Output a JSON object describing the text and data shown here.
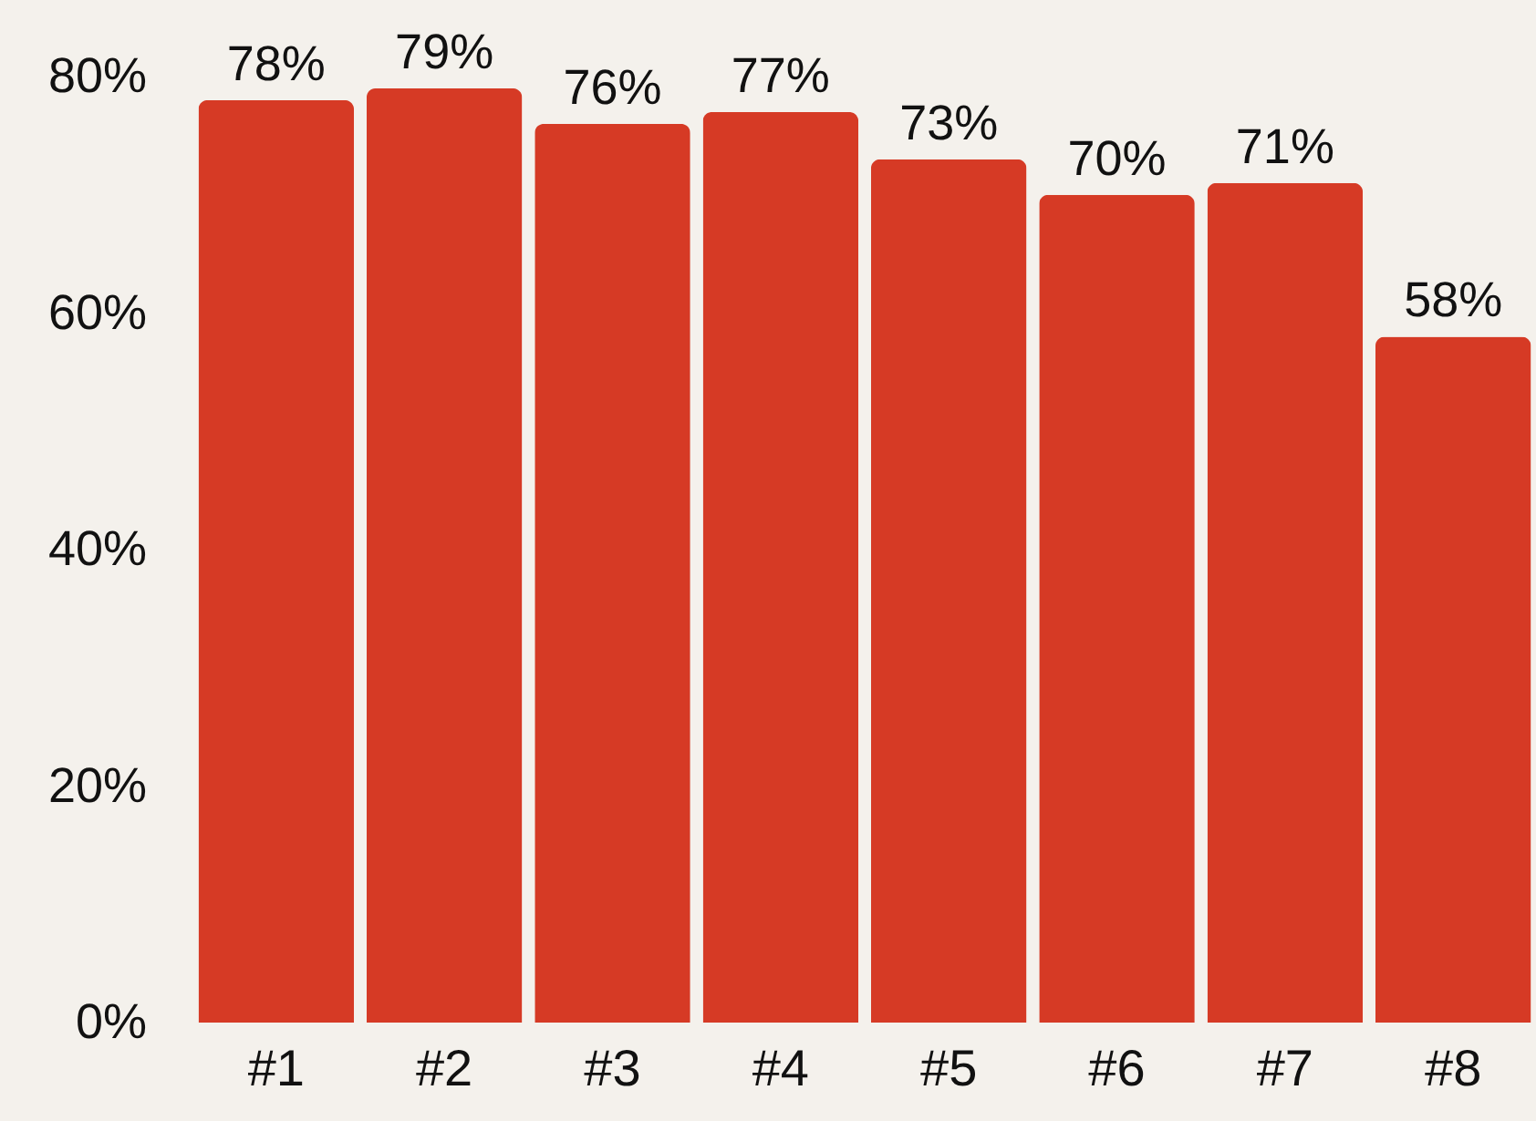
{
  "chart_data": {
    "type": "bar",
    "categories": [
      "#1",
      "#2",
      "#3",
      "#4",
      "#5",
      "#6",
      "#7",
      "#8"
    ],
    "values": [
      78,
      79,
      76,
      77,
      73,
      70,
      71,
      58
    ],
    "value_labels": [
      "78%",
      "79%",
      "76%",
      "77%",
      "73%",
      "70%",
      "71%",
      "58%"
    ],
    "color": "#d63a25",
    "ylim": [
      0,
      80
    ],
    "yticks": [
      {
        "value": 0,
        "label": "0%"
      },
      {
        "value": 20,
        "label": "20%"
      },
      {
        "value": 40,
        "label": "40%"
      },
      {
        "value": 60,
        "label": "60%"
      },
      {
        "value": 80,
        "label": "80%"
      }
    ],
    "grid": false
  }
}
